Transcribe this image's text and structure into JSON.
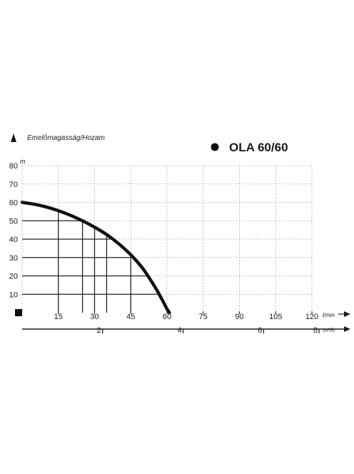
{
  "chart_data": {
    "type": "line",
    "title": "OLA 60/60",
    "ylabel": "Emelőmagasság/Hozam",
    "y_unit": "m",
    "x_unit": "l/min",
    "x2_unit": "m³/h",
    "xlim": [
      0,
      120
    ],
    "ylim": [
      0,
      80
    ],
    "x_ticks": [
      15,
      30,
      45,
      60,
      75,
      90,
      105,
      120
    ],
    "y_ticks": [
      10,
      20,
      30,
      40,
      50,
      60,
      70,
      80
    ],
    "x2_ticks": [
      "2",
      "4",
      "6",
      "8"
    ],
    "x2_tick_values_lmin": [
      33.33,
      66.67,
      100,
      133.33
    ],
    "grid": true,
    "series": [
      {
        "x": [
          0,
          5,
          10,
          15,
          20,
          25,
          30,
          35,
          40,
          45,
          50,
          55,
          58,
          60,
          61
        ],
        "y": [
          60,
          59,
          57.5,
          55.5,
          53,
          50,
          46.5,
          42.5,
          37.5,
          31.5,
          24,
          14,
          7,
          2,
          0
        ]
      }
    ],
    "highlight_points": [
      {
        "x": 15,
        "y": 55.5
      },
      {
        "x": 25,
        "y": 50
      },
      {
        "x": 30,
        "y": 46.5
      },
      {
        "x": 35,
        "y": 42.5
      },
      {
        "x": 45,
        "y": 31.5
      }
    ],
    "colors": {
      "line": "#111111",
      "grid": "#9a9a9a",
      "text": "#1a1a1a"
    }
  }
}
